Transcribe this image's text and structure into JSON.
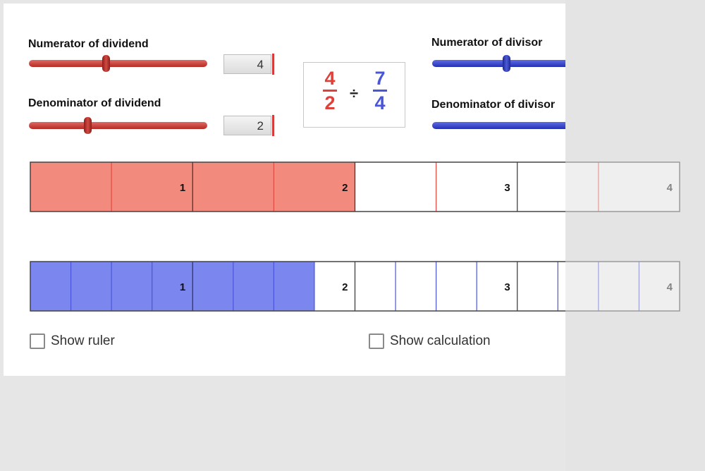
{
  "dividend": {
    "numerator_label": "Numerator of dividend",
    "numerator_value": "4",
    "denominator_label": "Denominator of dividend",
    "denominator_value": "2",
    "numerator_slider_fraction": 0.43,
    "denominator_slider_fraction": 0.33,
    "color": "#f28a7e",
    "line_color": "#e04a40"
  },
  "divisor": {
    "numerator_label": "Numerator of divisor",
    "denominator_label": "Denominator of divisor",
    "numerator_slider_fraction": 0.5,
    "color": "#7b86ef",
    "line_color": "#4a56d8"
  },
  "expression": {
    "dividend_num": "4",
    "dividend_den": "2",
    "operator": "÷",
    "divisor_num": "7",
    "divisor_den": "4"
  },
  "bar_model": {
    "units": 4,
    "unit_labels": [
      "1",
      "2",
      "3",
      "4"
    ],
    "dividend_bar": {
      "parts_per_unit": 2,
      "filled_parts": 4
    },
    "divisor_bar": {
      "parts_per_unit": 4,
      "filled_parts": 7
    }
  },
  "controls": {
    "show_ruler_label": "Show ruler",
    "show_calculation_label": "Show calculation"
  }
}
